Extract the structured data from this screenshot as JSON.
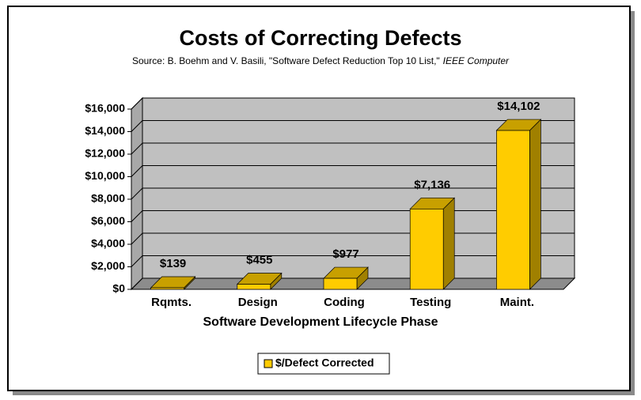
{
  "chart_data": {
    "type": "bar3d",
    "title": "Costs of Correcting Defects",
    "subtitle_parts": [
      "Source: B. Boehm and V. Basili, \"Software Defect Reduction Top 10 List,\"",
      "IEEE Computer"
    ],
    "x_label": "Software Development Lifecycle Phase",
    "categories": [
      "Rqmts.",
      "Design",
      "Coding",
      "Testing",
      "Maint."
    ],
    "series": [
      {
        "name": "$/Defect Corrected",
        "color": "#ffcc00",
        "values": [
          139,
          455,
          977,
          7136,
          14102
        ],
        "value_labels": [
          "$139",
          "$455",
          "$977",
          "$7,136",
          "$14,102"
        ]
      }
    ],
    "ylim": [
      0,
      16000
    ],
    "yticks": [
      {
        "value": 0,
        "label": "$0"
      },
      {
        "value": 2000,
        "label": "$2,000"
      },
      {
        "value": 4000,
        "label": "$4,000"
      },
      {
        "value": 6000,
        "label": "$6,000"
      },
      {
        "value": 8000,
        "label": "$8,000"
      },
      {
        "value": 10000,
        "label": "$10,000"
      },
      {
        "value": 12000,
        "label": "$12,000"
      },
      {
        "value": 14000,
        "label": "$14,000"
      },
      {
        "value": 16000,
        "label": "$16,000"
      }
    ],
    "grid": true,
    "legend": "bottom"
  }
}
